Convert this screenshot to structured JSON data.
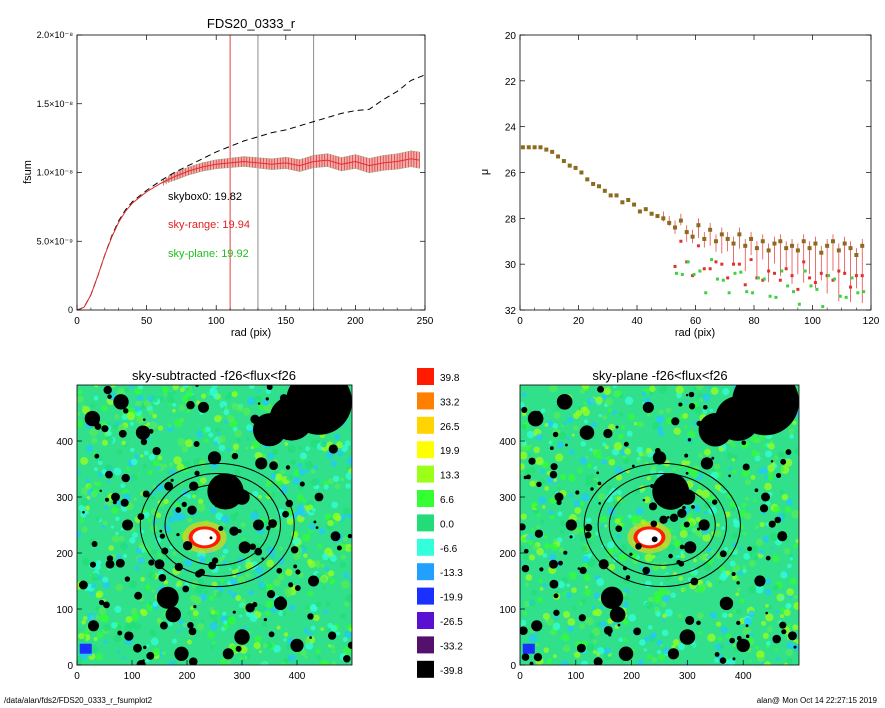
{
  "footer": {
    "path": "/data/alan/fds2/FDS20_0333_r_fsumplot2",
    "stamp": "alan@  Mon Oct 14 22:27:15 2019"
  },
  "chart_data": [
    {
      "type": "line",
      "title": "FDS20_0333_r",
      "xlabel": "rad (pix)",
      "ylabel": "fsum",
      "xlim": [
        0,
        250
      ],
      "ylim": [
        0,
        2e-08
      ],
      "xticks": [
        "0",
        "50",
        "100",
        "150",
        "200",
        "250"
      ],
      "yticks": [
        {
          "value": 0,
          "label": "0"
        },
        {
          "value": 5e-09,
          "label": "5.0×10⁻⁹"
        },
        {
          "value": 1e-08,
          "label": "1.0×10⁻⁸"
        },
        {
          "value": 1.5e-08,
          "label": "1.5×10⁻⁸"
        },
        {
          "value": 2e-08,
          "label": "2.0×10⁻⁸"
        }
      ],
      "vlines": [
        {
          "x": 110,
          "color": "#e03030"
        },
        {
          "x": 130,
          "color": "#808080"
        },
        {
          "x": 170,
          "color": "#808080"
        }
      ],
      "annotations": [
        {
          "text": "skybox0: 19.82",
          "color": "#000000"
        },
        {
          "text": "sky-range: 19.94",
          "color": "#e02020"
        },
        {
          "text": "sky-plane: 19.92",
          "color": "#20c020"
        }
      ],
      "series": [
        {
          "style": "dashed",
          "color": "#000000",
          "x": [
            0,
            5,
            10,
            15,
            20,
            25,
            30,
            35,
            40,
            45,
            50,
            60,
            70,
            80,
            90,
            100,
            110,
            120,
            130,
            140,
            150,
            160,
            170,
            180,
            190,
            200,
            210,
            220,
            230,
            240,
            250
          ],
          "y": [
            0,
            2e-10,
            1.1e-09,
            2.5e-09,
            4e-09,
            5.4e-09,
            6.5e-09,
            7.3e-09,
            7.9e-09,
            8.3e-09,
            8.7e-09,
            9.4e-09,
            1e-08,
            1.05e-08,
            1.1e-08,
            1.15e-08,
            1.19e-08,
            1.23e-08,
            1.26e-08,
            1.29e-08,
            1.31e-08,
            1.34e-08,
            1.37e-08,
            1.4e-08,
            1.43e-08,
            1.45e-08,
            1.46e-08,
            1.53e-08,
            1.59e-08,
            1.67e-08,
            1.71e-08
          ]
        },
        {
          "style": "solid",
          "color": "#e03030",
          "x": [
            0,
            5,
            10,
            15,
            20,
            25,
            30,
            35,
            40,
            45,
            50,
            60,
            70,
            80,
            90,
            100,
            110,
            120,
            130,
            140,
            150,
            160,
            170,
            180,
            190,
            200,
            210,
            220,
            230,
            240,
            246
          ],
          "y": [
            0,
            2e-10,
            1.1e-09,
            2.5e-09,
            4e-09,
            5.3e-09,
            6.4e-09,
            7.2e-09,
            7.8e-09,
            8.2e-09,
            8.6e-09,
            9.2e-09,
            9.7e-09,
            1.01e-08,
            1.04e-08,
            1.06e-08,
            1.07e-08,
            1.08e-08,
            1.07e-08,
            1.06e-08,
            1.07e-08,
            1.05e-08,
            1.08e-08,
            1.09e-08,
            1.06e-08,
            1.08e-08,
            1.05e-08,
            1.07e-08,
            1.08e-08,
            1.1e-08,
            1.09e-08
          ]
        }
      ]
    },
    {
      "type": "scatter",
      "title": "",
      "xlabel": "rad (pix)",
      "ylabel": "μ",
      "xlim": [
        0,
        120
      ],
      "ylim": [
        32,
        20
      ],
      "xticks": [
        "0",
        "20",
        "40",
        "60",
        "80",
        "100",
        "120"
      ],
      "yticks": [
        "20",
        "22",
        "24",
        "26",
        "28",
        "30",
        "32"
      ],
      "series": [
        {
          "color": "#8b6b1e",
          "x": [
            1,
            3,
            5,
            7,
            9,
            11,
            13,
            15,
            17,
            19,
            21,
            23,
            25,
            27,
            29,
            31,
            33,
            35,
            37,
            39,
            41,
            43,
            45,
            47,
            49,
            51,
            53,
            55,
            57,
            59,
            61,
            63,
            65,
            67,
            69,
            71,
            73,
            75,
            77,
            79,
            81,
            83,
            85,
            87,
            89,
            91,
            93,
            95,
            97,
            99,
            101,
            103,
            105,
            107,
            109,
            111,
            113,
            115,
            117
          ],
          "y": [
            24.9,
            24.9,
            24.9,
            24.9,
            25.0,
            25.1,
            25.3,
            25.5,
            25.7,
            25.8,
            26.0,
            26.3,
            26.5,
            26.6,
            26.8,
            27.0,
            27.0,
            27.3,
            27.2,
            27.4,
            27.7,
            27.6,
            27.8,
            27.9,
            28.0,
            28.2,
            28.4,
            28.1,
            28.6,
            28.8,
            28.3,
            28.9,
            28.5,
            29.0,
            28.7,
            28.9,
            29.1,
            28.7,
            29.2,
            28.9,
            29.3,
            29.0,
            29.4,
            29.1,
            29.0,
            29.3,
            29.2,
            29.4,
            29.0,
            29.3,
            29.1,
            29.5,
            29.2,
            29.0,
            29.4,
            29.1,
            29.3,
            29.6,
            29.2
          ]
        }
      ]
    },
    {
      "type": "heatmap",
      "title": "sky-subtracted -f26<flux<f26",
      "xlim": [
        0,
        500
      ],
      "ylim": [
        0,
        500
      ],
      "xticks": [
        "0",
        "100",
        "200",
        "300",
        "400"
      ],
      "yticks": [
        "0",
        "100",
        "200",
        "300",
        "400"
      ]
    },
    {
      "type": "heatmap",
      "title": "sky-plane -f26<flux<f26",
      "xlim": [
        0,
        500
      ],
      "ylim": [
        0,
        500
      ],
      "xticks": [
        "0",
        "100",
        "200",
        "300",
        "400"
      ],
      "yticks": [
        "0",
        "100",
        "200",
        "300",
        "400"
      ]
    },
    {
      "type": "colorbar",
      "levels": [
        {
          "label": "39.8",
          "color": "#ff1a00"
        },
        {
          "label": "33.2",
          "color": "#ff7f00"
        },
        {
          "label": "26.5",
          "color": "#ffd400"
        },
        {
          "label": "19.9",
          "color": "#ffff00"
        },
        {
          "label": "13.3",
          "color": "#9cff1a"
        },
        {
          "label": "6.6",
          "color": "#33ff33"
        },
        {
          "label": "0.0",
          "color": "#22dd77"
        },
        {
          "label": "-6.6",
          "color": "#33ffdd"
        },
        {
          "label": "-13.3",
          "color": "#22a0ff"
        },
        {
          "label": "-19.9",
          "color": "#1a30ff"
        },
        {
          "label": "-26.5",
          "color": "#5a10d0"
        },
        {
          "label": "-33.2",
          "color": "#55106e"
        },
        {
          "label": "-39.8",
          "color": "#000000"
        }
      ]
    }
  ]
}
